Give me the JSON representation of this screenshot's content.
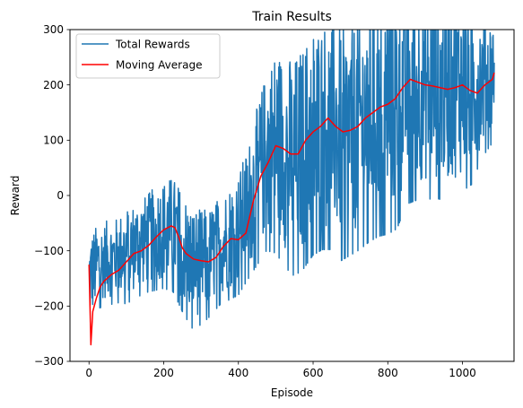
{
  "chart_data": {
    "type": "line",
    "title": "Train Results",
    "xlabel": "Episode",
    "ylabel": "Reward",
    "xlim": [
      -51,
      1138
    ],
    "ylim": [
      -300,
      300
    ],
    "xticks": [
      0,
      200,
      400,
      600,
      800,
      1000
    ],
    "yticks": [
      -300,
      -200,
      -100,
      0,
      100,
      200,
      300
    ],
    "grid": false,
    "legend": "top-left",
    "series": [
      {
        "name": "Total Rewards",
        "color": "#1f77b4",
        "anchors": {
          "x": [
            0,
            25,
            50,
            75,
            100,
            125,
            150,
            175,
            200,
            225,
            250,
            275,
            300,
            325,
            350,
            375,
            400,
            425,
            450,
            475,
            500,
            525,
            550,
            575,
            600,
            625,
            650,
            675,
            700,
            725,
            750,
            775,
            800,
            825,
            850,
            875,
            900,
            925,
            950,
            975,
            1000,
            1025,
            1050,
            1085
          ],
          "center": [
            -150,
            -120,
            -115,
            -110,
            -100,
            -90,
            -80,
            -70,
            -60,
            -60,
            -90,
            -120,
            -120,
            -110,
            -90,
            -75,
            -60,
            -20,
            30,
            80,
            100,
            80,
            70,
            90,
            120,
            130,
            130,
            110,
            120,
            130,
            150,
            160,
            170,
            180,
            200,
            195,
            195,
            200,
            195,
            200,
            200,
            200,
            210,
            220
          ],
          "spread": [
            80,
            70,
            70,
            70,
            80,
            80,
            80,
            85,
            90,
            95,
            100,
            100,
            95,
            90,
            90,
            95,
            100,
            110,
            130,
            150,
            170,
            175,
            180,
            185,
            190,
            190,
            190,
            190,
            190,
            190,
            195,
            195,
            200,
            200,
            180,
            170,
            170,
            170,
            170,
            170,
            160,
            150,
            120,
            100
          ]
        }
      },
      {
        "name": "Moving Average",
        "color": "#ff0000",
        "x": [
          0,
          5,
          10,
          20,
          30,
          40,
          60,
          80,
          100,
          120,
          140,
          160,
          180,
          200,
          220,
          230,
          240,
          250,
          260,
          280,
          300,
          320,
          340,
          360,
          380,
          400,
          420,
          440,
          460,
          480,
          500,
          520,
          540,
          560,
          580,
          600,
          620,
          640,
          660,
          680,
          700,
          720,
          740,
          760,
          780,
          800,
          820,
          840,
          860,
          880,
          900,
          920,
          940,
          960,
          980,
          1000,
          1020,
          1040,
          1060,
          1080,
          1085
        ],
        "values": [
          -125,
          -270,
          -210,
          -185,
          -165,
          -155,
          -143,
          -135,
          -120,
          -105,
          -100,
          -90,
          -75,
          -62,
          -55,
          -58,
          -75,
          -95,
          -105,
          -115,
          -118,
          -120,
          -112,
          -92,
          -78,
          -80,
          -68,
          -10,
          35,
          60,
          90,
          85,
          75,
          75,
          100,
          115,
          125,
          140,
          125,
          115,
          118,
          125,
          140,
          150,
          160,
          165,
          175,
          195,
          210,
          205,
          200,
          198,
          195,
          192,
          195,
          200,
          190,
          185,
          200,
          210,
          222
        ]
      }
    ]
  }
}
